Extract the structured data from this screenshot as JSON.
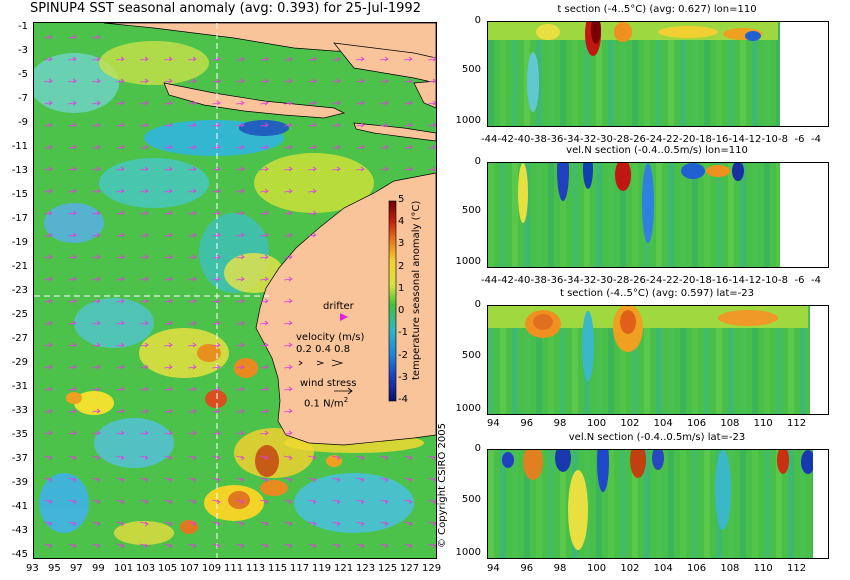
{
  "main_title": "SPINUP4 SST seasonal anomaly (avg: 0.393) for 25-Jul-1992",
  "map": {
    "y_ticks": [
      "-1",
      "-3",
      "-5",
      "-7",
      "-9",
      "-11",
      "-13",
      "-15",
      "-17",
      "-19",
      "-21",
      "-23",
      "-25",
      "-27",
      "-29",
      "-31",
      "-33",
      "-35",
      "-37",
      "-39",
      "-41",
      "-43",
      "-45"
    ],
    "x_ticks": [
      "93",
      "95",
      "97",
      "99",
      "101",
      "103",
      "105",
      "107",
      "109",
      "111",
      "113",
      "115",
      "117",
      "119",
      "121",
      "123",
      "125",
      "127",
      "129"
    ],
    "legend": {
      "drifter_label": "drifter",
      "velocity_label": "velocity (m/s)",
      "velocity_values": "0.2 0.4 0.8",
      "wind_label": "wind stress",
      "wind_value": "0.1 N/m",
      "wind_exp": "2"
    },
    "colorbar": {
      "label": "temperature seasonal anomaly (°C)",
      "ticks": [
        "5",
        "4",
        "3",
        "2",
        "1",
        "0",
        "-1",
        "-2",
        "-3",
        "-4"
      ]
    },
    "colors": {
      "land": "#f9c49a",
      "ocean_base": "#4cc24a",
      "arrow": "#e040e0"
    }
  },
  "copyright": "© Copyright CSIRO 2005",
  "sections": [
    {
      "title": "t section (-4..5°C) (avg: 0.627) lon=110",
      "y_ticks": [
        "0",
        "500",
        "1000"
      ],
      "x_ticks": [
        "-44",
        "-42",
        "-40",
        "-38",
        "-36",
        "-34",
        "-32",
        "-30",
        "-28",
        "-26",
        "-24",
        "-22",
        "-20",
        "-18",
        "-16",
        "-14",
        "-12",
        "-10",
        "-8",
        "-6",
        "-4"
      ]
    },
    {
      "title": "vel.N section (-0.4..0.5m/s) lon=110",
      "y_ticks": [
        "0",
        "500",
        "1000"
      ],
      "x_ticks": [
        "-44",
        "-42",
        "-40",
        "-38",
        "-36",
        "-34",
        "-32",
        "-30",
        "-28",
        "-26",
        "-24",
        "-22",
        "-20",
        "-18",
        "-16",
        "-14",
        "-12",
        "-10",
        "-8",
        "-6",
        "-4"
      ]
    },
    {
      "title": "t section (-4..5°C) (avg: 0.597) lat=-23",
      "y_ticks": [
        "0",
        "500",
        "1000"
      ],
      "x_ticks": [
        "94",
        "96",
        "98",
        "100",
        "102",
        "104",
        "106",
        "108",
        "110",
        "112"
      ]
    },
    {
      "title": "vel.N section (-0.4..0.5m/s) lat=-23",
      "y_ticks": [
        "0",
        "500",
        "1000"
      ],
      "x_ticks": [
        "94",
        "96",
        "98",
        "100",
        "102",
        "104",
        "106",
        "108",
        "110",
        "112"
      ]
    }
  ]
}
